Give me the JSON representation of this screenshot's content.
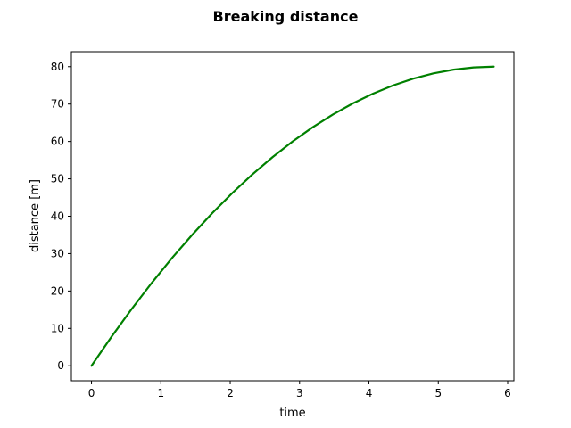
{
  "chart_data": {
    "type": "line",
    "title": "Breaking distance",
    "xlabel": "time",
    "ylabel": "distance [m]",
    "xlim": [
      -0.29,
      6.09
    ],
    "ylim": [
      -4,
      84
    ],
    "xticks": [
      0,
      1,
      2,
      3,
      4,
      5,
      6
    ],
    "yticks": [
      0,
      10,
      20,
      30,
      40,
      50,
      60,
      70,
      80
    ],
    "grid": false,
    "series": [
      {
        "color": "#008000",
        "x": [
          0.0,
          0.29,
          0.58,
          0.87,
          1.16,
          1.45,
          1.74,
          2.03,
          2.32,
          2.61,
          2.9,
          3.19,
          3.48,
          3.77,
          4.06,
          4.35,
          4.64,
          4.93,
          5.22,
          5.51,
          5.8
        ],
        "y": [
          0.0,
          7.8,
          15.2,
          22.2,
          28.8,
          35.0,
          40.8,
          46.2,
          51.2,
          55.8,
          60.0,
          63.8,
          67.2,
          70.2,
          72.8,
          75.0,
          76.8,
          78.2,
          79.2,
          79.8,
          80.0
        ]
      }
    ]
  }
}
